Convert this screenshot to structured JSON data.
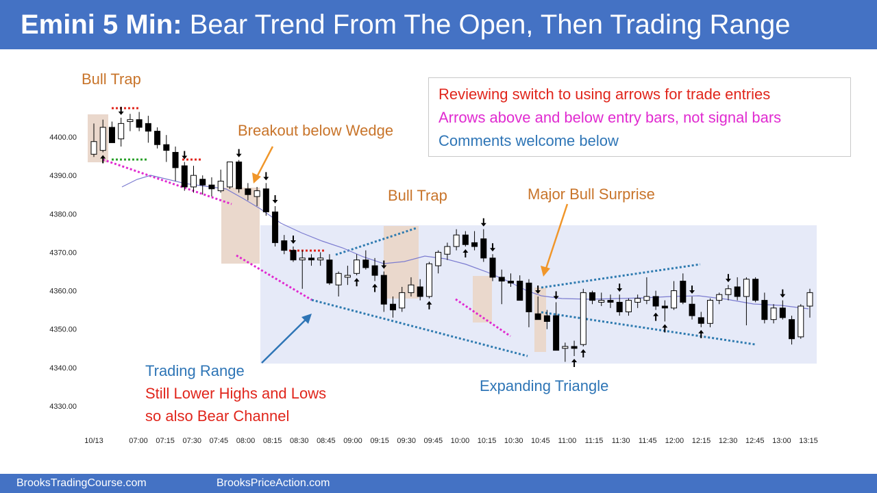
{
  "title": {
    "bold": "Emini 5 Min:",
    "rest": "Bear Trend From The Open, Then Trading Range"
  },
  "footer": {
    "left": "BrooksTradingCourse.com",
    "right": "BrooksPriceAction.com"
  },
  "annotations": {
    "bull_trap_1": "Bull Trap",
    "breakout_wedge": "Breakout below Wedge",
    "bull_trap_2": "Bull Trap",
    "major_bull": "Major Bull Surprise",
    "trading_range": "Trading Range",
    "lower_highs": "Still Lower Highs and Lows",
    "bear_channel": "so also Bear Channel",
    "expanding_triangle": "Expanding Triangle"
  },
  "legend": {
    "line1": "Reviewing switch to using arrows for trade entries",
    "line2": "Arrows above and below entry bars, not signal bars",
    "line3": "Comments welcome below"
  },
  "colors": {
    "header": "#4472c4",
    "annotation_orange": "#c8742a",
    "annotation_blue": "#2e75b6",
    "annotation_red": "#e0251b",
    "annotation_magenta": "#e02ad0",
    "range_box": "#e6eaf8",
    "highlight": "#ead8cc",
    "ema": "#7b7bd0"
  },
  "chart_data": {
    "type": "candlestick",
    "title": "Emini 5 Min",
    "y_ticks": [
      "4400.00",
      "4390.00",
      "4380.00",
      "4370.00",
      "4360.00",
      "4350.00",
      "4340.00",
      "4330.00"
    ],
    "ylim": [
      4325,
      4412
    ],
    "x_ticks": [
      "10/13",
      "07:00",
      "07:15",
      "07:30",
      "07:45",
      "08:00",
      "08:15",
      "08:30",
      "08:45",
      "09:00",
      "09:15",
      "09:30",
      "09:45",
      "10:00",
      "10:15",
      "10:30",
      "10:45",
      "11:00",
      "11:15",
      "11:30",
      "11:45",
      "12:00",
      "12:15",
      "12:30",
      "12:45",
      "13:00",
      "13:15"
    ],
    "bar_count": 80,
    "candles": [
      {
        "o": 4395.5,
        "h": 4403.5,
        "l": 4394.8,
        "c": 4398.8
      },
      {
        "o": 4396.5,
        "h": 4404.5,
        "l": 4396.0,
        "c": 4402.5
      },
      {
        "o": 4402.5,
        "h": 4404.0,
        "l": 4398.5,
        "c": 4398.5
      },
      {
        "o": 4399.5,
        "h": 4405.0,
        "l": 4397.5,
        "c": 4403.5
      },
      {
        "o": 4404.0,
        "h": 4406.0,
        "l": 4401.5,
        "c": 4404.5
      },
      {
        "o": 4404.5,
        "h": 4406.5,
        "l": 4401.5,
        "c": 4402.5
      },
      {
        "o": 4403.5,
        "h": 4405.5,
        "l": 4398.5,
        "c": 4401.5
      },
      {
        "o": 4401.5,
        "h": 4402.5,
        "l": 4397.0,
        "c": 4398.0
      },
      {
        "o": 4398.0,
        "h": 4400.5,
        "l": 4393.5,
        "c": 4396.5
      },
      {
        "o": 4396.0,
        "h": 4397.5,
        "l": 4388.5,
        "c": 4392.0
      },
      {
        "o": 4392.5,
        "h": 4393.5,
        "l": 4386.0,
        "c": 4387.0
      },
      {
        "o": 4387.0,
        "h": 4392.5,
        "l": 4385.5,
        "c": 4390.0
      },
      {
        "o": 4389.0,
        "h": 4390.0,
        "l": 4385.0,
        "c": 4387.5
      },
      {
        "o": 4387.5,
        "h": 4389.5,
        "l": 4384.5,
        "c": 4386.5
      },
      {
        "o": 4386.0,
        "h": 4391.5,
        "l": 4385.5,
        "c": 4388.5
      },
      {
        "o": 4387.0,
        "h": 4393.5,
        "l": 4386.5,
        "c": 4393.5
      },
      {
        "o": 4393.5,
        "h": 4394.0,
        "l": 4385.5,
        "c": 4386.5
      },
      {
        "o": 4386.5,
        "h": 4388.0,
        "l": 4383.5,
        "c": 4385.0
      },
      {
        "o": 4384.5,
        "h": 4387.0,
        "l": 4382.0,
        "c": 4386.0
      },
      {
        "o": 4386.5,
        "h": 4388.0,
        "l": 4379.5,
        "c": 4380.5
      },
      {
        "o": 4380.5,
        "h": 4382.0,
        "l": 4371.5,
        "c": 4372.5
      },
      {
        "o": 4373.0,
        "h": 4374.5,
        "l": 4369.5,
        "c": 4370.5
      },
      {
        "o": 4370.5,
        "h": 4371.5,
        "l": 4367.5,
        "c": 4368.0
      },
      {
        "o": 4368.0,
        "h": 4370.5,
        "l": 4360.5,
        "c": 4368.5
      },
      {
        "o": 4368.5,
        "h": 4369.5,
        "l": 4366.5,
        "c": 4368.0
      },
      {
        "o": 4368.0,
        "h": 4370.0,
        "l": 4366.5,
        "c": 4368.5
      },
      {
        "o": 4368.0,
        "h": 4369.5,
        "l": 4361.5,
        "c": 4362.0
      },
      {
        "o": 4361.5,
        "h": 4365.0,
        "l": 4358.5,
        "c": 4364.5
      },
      {
        "o": 4363.5,
        "h": 4366.5,
        "l": 4361.5,
        "c": 4364.0
      },
      {
        "o": 4364.5,
        "h": 4369.5,
        "l": 4364.0,
        "c": 4368.0
      },
      {
        "o": 4368.0,
        "h": 4370.5,
        "l": 4365.5,
        "c": 4366.0
      },
      {
        "o": 4366.5,
        "h": 4368.5,
        "l": 4362.5,
        "c": 4364.0
      },
      {
        "o": 4364.0,
        "h": 4365.0,
        "l": 4354.5,
        "c": 4356.5
      },
      {
        "o": 4356.5,
        "h": 4358.5,
        "l": 4353.0,
        "c": 4355.0
      },
      {
        "o": 4355.5,
        "h": 4361.0,
        "l": 4354.5,
        "c": 4359.5
      },
      {
        "o": 4359.5,
        "h": 4363.5,
        "l": 4358.5,
        "c": 4361.5
      },
      {
        "o": 4361.0,
        "h": 4363.0,
        "l": 4357.5,
        "c": 4358.5
      },
      {
        "o": 4358.5,
        "h": 4367.5,
        "l": 4358.0,
        "c": 4367.0
      },
      {
        "o": 4366.5,
        "h": 4370.5,
        "l": 4364.5,
        "c": 4370.0
      },
      {
        "o": 4369.5,
        "h": 4372.5,
        "l": 4368.0,
        "c": 4371.5
      },
      {
        "o": 4371.5,
        "h": 4376.0,
        "l": 4370.5,
        "c": 4374.5
      },
      {
        "o": 4374.5,
        "h": 4375.5,
        "l": 4371.5,
        "c": 4372.0
      },
      {
        "o": 4372.5,
        "h": 4375.5,
        "l": 4370.5,
        "c": 4371.5
      },
      {
        "o": 4373.5,
        "h": 4376.0,
        "l": 4367.5,
        "c": 4368.5
      },
      {
        "o": 4368.5,
        "h": 4369.5,
        "l": 4362.5,
        "c": 4363.5
      },
      {
        "o": 4363.5,
        "h": 4365.5,
        "l": 4356.5,
        "c": 4362.5
      },
      {
        "o": 4362.5,
        "h": 4364.5,
        "l": 4361.0,
        "c": 4362.0
      },
      {
        "o": 4362.5,
        "h": 4364.0,
        "l": 4357.5,
        "c": 4357.5
      },
      {
        "o": 4362.0,
        "h": 4363.0,
        "l": 4350.5,
        "c": 4354.5
      },
      {
        "o": 4354.0,
        "h": 4358.5,
        "l": 4352.5,
        "c": 4352.5
      },
      {
        "o": 4353.5,
        "h": 4355.0,
        "l": 4350.0,
        "c": 4352.0
      },
      {
        "o": 4353.5,
        "h": 4357.0,
        "l": 4344.5,
        "c": 4344.5
      },
      {
        "o": 4345.0,
        "h": 4346.5,
        "l": 4341.5,
        "c": 4345.5
      },
      {
        "o": 4345.5,
        "h": 4347.0,
        "l": 4343.0,
        "c": 4345.0
      },
      {
        "o": 4346.0,
        "h": 4360.5,
        "l": 4345.5,
        "c": 4359.5
      },
      {
        "o": 4359.5,
        "h": 4360.0,
        "l": 4356.5,
        "c": 4357.5
      },
      {
        "o": 4357.0,
        "h": 4359.5,
        "l": 4356.0,
        "c": 4357.5
      },
      {
        "o": 4357.5,
        "h": 4359.0,
        "l": 4355.5,
        "c": 4357.0
      },
      {
        "o": 4357.0,
        "h": 4359.0,
        "l": 4353.5,
        "c": 4354.5
      },
      {
        "o": 4354.5,
        "h": 4358.0,
        "l": 4353.5,
        "c": 4357.5
      },
      {
        "o": 4357.0,
        "h": 4359.0,
        "l": 4355.5,
        "c": 4358.0
      },
      {
        "o": 4357.5,
        "h": 4363.5,
        "l": 4356.5,
        "c": 4358.5
      },
      {
        "o": 4358.5,
        "h": 4360.0,
        "l": 4355.0,
        "c": 4356.0
      },
      {
        "o": 4356.0,
        "h": 4357.5,
        "l": 4352.0,
        "c": 4355.5
      },
      {
        "o": 4355.5,
        "h": 4362.5,
        "l": 4355.0,
        "c": 4360.0
      },
      {
        "o": 4362.5,
        "h": 4364.5,
        "l": 4356.5,
        "c": 4357.0
      },
      {
        "o": 4356.5,
        "h": 4358.5,
        "l": 4352.5,
        "c": 4353.5
      },
      {
        "o": 4353.0,
        "h": 4354.5,
        "l": 4350.5,
        "c": 4351.5
      },
      {
        "o": 4351.5,
        "h": 4358.0,
        "l": 4350.5,
        "c": 4357.5
      },
      {
        "o": 4357.5,
        "h": 4359.5,
        "l": 4356.5,
        "c": 4359.0
      },
      {
        "o": 4359.0,
        "h": 4361.5,
        "l": 4357.5,
        "c": 4360.5
      },
      {
        "o": 4361.0,
        "h": 4363.5,
        "l": 4357.5,
        "c": 4358.5
      },
      {
        "o": 4358.5,
        "h": 4363.5,
        "l": 4351.0,
        "c": 4363.0
      },
      {
        "o": 4363.0,
        "h": 4363.5,
        "l": 4357.0,
        "c": 4357.5
      },
      {
        "o": 4357.5,
        "h": 4359.5,
        "l": 4351.5,
        "c": 4352.5
      },
      {
        "o": 4352.5,
        "h": 4356.5,
        "l": 4351.5,
        "c": 4355.5
      },
      {
        "o": 4355.5,
        "h": 4357.5,
        "l": 4352.5,
        "c": 4353.0
      },
      {
        "o": 4352.5,
        "h": 4353.5,
        "l": 4346.0,
        "c": 4347.5
      },
      {
        "o": 4348.0,
        "h": 4356.5,
        "l": 4347.5,
        "c": 4356.0
      },
      {
        "o": 4356.0,
        "h": 4360.5,
        "l": 4353.0,
        "c": 4359.5
      }
    ]
  }
}
